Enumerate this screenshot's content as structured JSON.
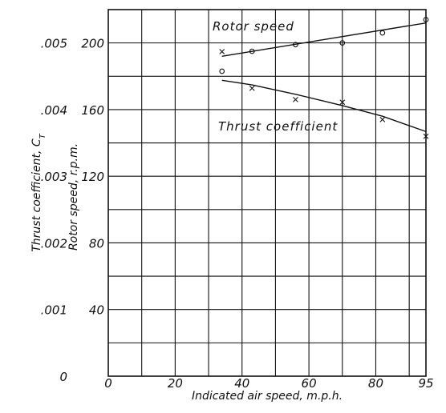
{
  "chart_data": {
    "type": "line",
    "title": "",
    "xlabel": "Indicated air speed, m.p.h.",
    "ylabel_left": "Thrust coefficient, C",
    "ylabel_left_subscript": "T",
    "ylabel_right": "Rotor speed, r.p.m.",
    "xlim": [
      0,
      95
    ],
    "x_ticks": [
      0,
      20,
      40,
      60,
      80,
      95
    ],
    "x_tick_labels": [
      "0",
      "20",
      "40",
      "60",
      "80",
      "95"
    ],
    "rpm_lim": [
      0,
      220
    ],
    "rpm_ticks": [
      40,
      80,
      120,
      160,
      200
    ],
    "rpm_tick_labels": [
      "40",
      "80",
      "120",
      "160",
      "200"
    ],
    "ct_lim": [
      0,
      0.0055
    ],
    "ct_ticks": [
      0,
      0.001,
      0.002,
      0.003,
      0.004,
      0.005
    ],
    "ct_tick_labels": [
      "0",
      ".001",
      ".002",
      ".003",
      ".004",
      ".005"
    ],
    "grid": true,
    "series": [
      {
        "name": "Rotor speed",
        "axis": "rpm",
        "marker": "circle",
        "x": [
          34,
          43,
          56,
          70,
          82,
          95
        ],
        "y": [
          183,
          195,
          199,
          200,
          206,
          214
        ],
        "fit_x": [
          34,
          95
        ],
        "fit_y": [
          192,
          212
        ]
      },
      {
        "name": "Thrust coefficient",
        "axis": "ct",
        "marker": "x",
        "x": [
          34,
          43,
          56,
          70,
          82,
          95
        ],
        "y": [
          0.00487,
          0.00432,
          0.00415,
          0.00411,
          0.00385,
          0.0036
        ],
        "fit_x": [
          34,
          43,
          56,
          70,
          82,
          95
        ],
        "fit_y": [
          0.00444,
          0.00437,
          0.00423,
          0.00406,
          0.0039,
          0.00367
        ]
      }
    ]
  }
}
